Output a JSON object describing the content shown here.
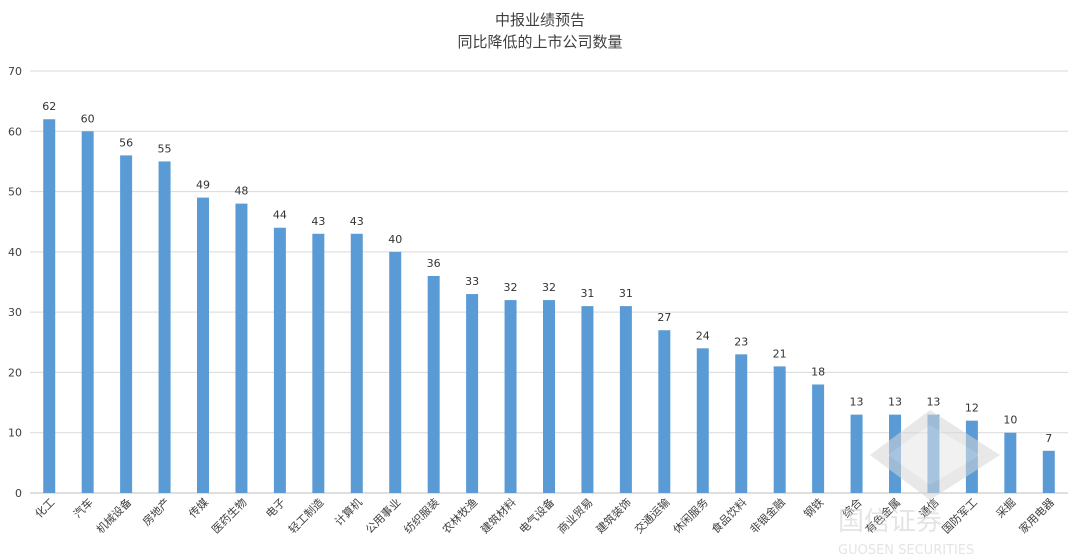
{
  "chart_data": {
    "type": "bar",
    "title": [
      "中报业绩预告",
      "同比降低的上市公司数量"
    ],
    "categories": [
      "化工",
      "汽车",
      "机械设备",
      "房地产",
      "传媒",
      "医药生物",
      "电子",
      "轻工制造",
      "计算机",
      "公用事业",
      "纺织服装",
      "农林牧渔",
      "建筑材料",
      "电气设备",
      "商业贸易",
      "建筑装饰",
      "交通运输",
      "休闲服务",
      "食品饮料",
      "非银金融",
      "钢铁",
      "综合",
      "有色金属",
      "通信",
      "国防军工",
      "采掘",
      "家用电器"
    ],
    "values": [
      62,
      60,
      56,
      55,
      49,
      48,
      44,
      43,
      43,
      40,
      36,
      33,
      32,
      32,
      31,
      31,
      27,
      24,
      23,
      21,
      18,
      13,
      13,
      13,
      12,
      10,
      7
    ],
    "ylim": [
      0,
      70
    ],
    "yticks": [
      0,
      10,
      20,
      30,
      40,
      50,
      60,
      70
    ],
    "grid": true,
    "legend": "none",
    "bar_color": "#5b9bd5"
  },
  "watermark": {
    "logo_text": "国信证券",
    "sub_text": "GUOSEN SECURITIES"
  }
}
